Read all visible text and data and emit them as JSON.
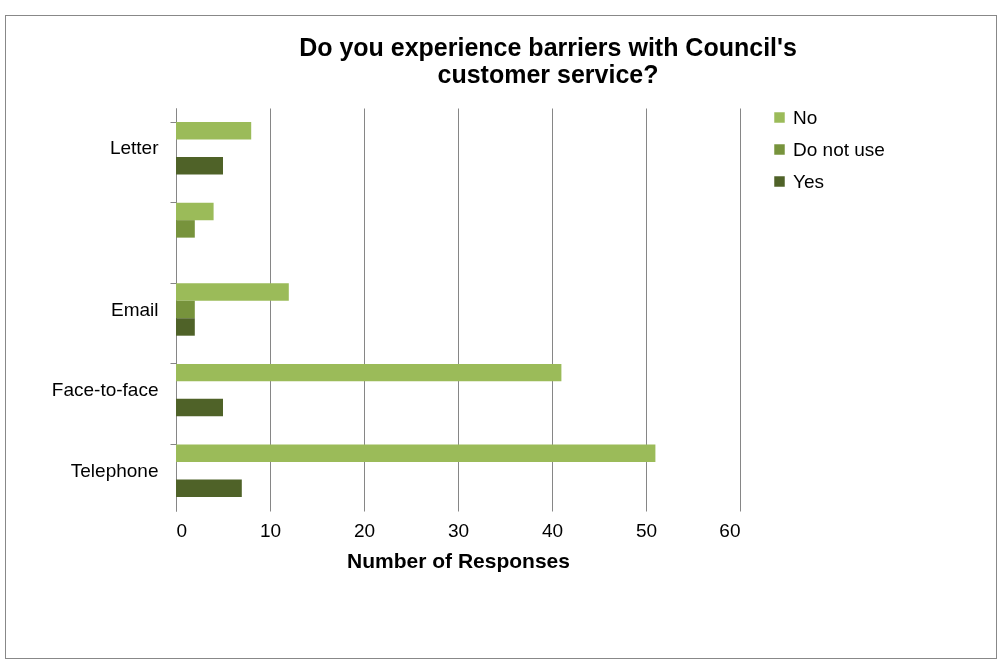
{
  "chart_data": {
    "type": "bar",
    "orientation": "horizontal",
    "title": "Do  you experience barriers with Council's customer service?",
    "xlabel": "Number of Responses",
    "categories": [
      "Letter",
      null,
      "Email",
      "Face-to-face",
      "Telephone"
    ],
    "series": [
      {
        "name": "No",
        "color": "#9bbb59",
        "values": [
          8,
          4,
          12,
          41,
          51
        ]
      },
      {
        "name": "Do not use",
        "color": "#77933c",
        "values": [
          0,
          2,
          2,
          0,
          0
        ]
      },
      {
        "name": "Yes",
        "color": "#4f6228",
        "values": [
          5,
          0,
          2,
          5,
          7
        ]
      }
    ],
    "xlim": [
      0,
      60
    ],
    "xticks": [
      0,
      10,
      20,
      30,
      40,
      50,
      60
    ],
    "grid": "x",
    "legend": "right"
  }
}
